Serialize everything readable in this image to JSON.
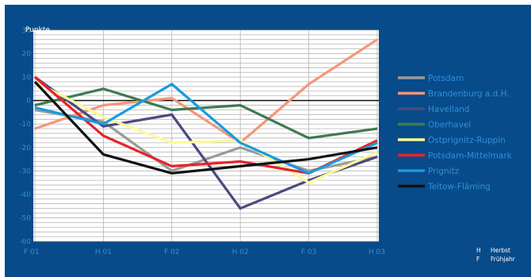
{
  "chart_data": {
    "type": "line",
    "title": "",
    "xlabel": "",
    "ylabel": "Punkte",
    "ylim": [
      -60,
      30
    ],
    "yticks": [
      30,
      20,
      10,
      0,
      -10,
      -20,
      -30,
      -40,
      -50,
      -60
    ],
    "ytick_labels": [
      "30",
      "20",
      "10",
      "0",
      "-10",
      "-20",
      "-30",
      "-40",
      "-50",
      "-60"
    ],
    "categories": [
      "F 01",
      "H 01",
      "F 02",
      "H 02",
      "F 03",
      "H 03"
    ],
    "grid": true,
    "zero_line": true,
    "legend_position": "right",
    "series": [
      {
        "name": "Potsdam",
        "color": "#9a9a9a",
        "values": [
          -4,
          -9,
          -30,
          -20,
          -30,
          -24
        ]
      },
      {
        "name": "Brandenburg a.d.H.",
        "color": "#f4967a",
        "values": [
          -12,
          -2,
          1,
          -18,
          7,
          26
        ]
      },
      {
        "name": "Havelland",
        "color": "#4a4a7e",
        "values": [
          10,
          -11,
          -6,
          -46,
          -34,
          -24
        ]
      },
      {
        "name": "Oberhavel",
        "color": "#3d7a52",
        "values": [
          -2,
          5,
          -4,
          -2,
          -16,
          -12
        ]
      },
      {
        "name": "Ostprignitz-Ruppin",
        "color": "#fafa9c",
        "values": [
          8,
          -7,
          -18,
          -17,
          -35,
          -22
        ]
      },
      {
        "name": "Potsdam-Mittelmark",
        "color": "#e8222a",
        "values": [
          10,
          -15,
          -28,
          -26,
          -31,
          -17
        ]
      },
      {
        "name": "Prignitz",
        "color": "#169be0",
        "values": [
          -3,
          -10,
          7,
          -18,
          -31,
          -18
        ]
      },
      {
        "name": "Teltow-Fläming",
        "color": "#111111",
        "values": [
          8,
          -23,
          -31,
          -28,
          -25,
          -20
        ]
      }
    ]
  },
  "notes": [
    {
      "key": "H",
      "text": "Herbst"
    },
    {
      "key": "F",
      "text": "Frühjahr"
    }
  ]
}
